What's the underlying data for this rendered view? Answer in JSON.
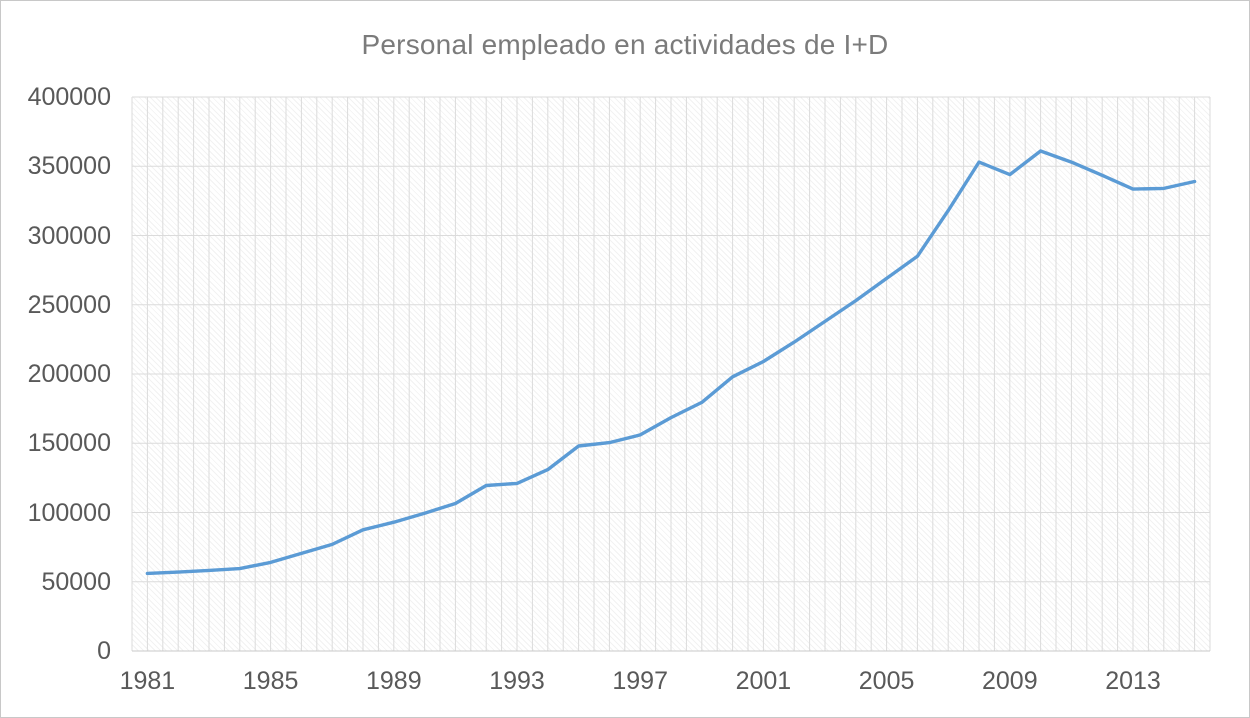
{
  "chart_data": {
    "type": "line",
    "title": "Personal empleado en actividades de I+D",
    "x": [
      1981,
      1982,
      1983,
      1984,
      1985,
      1986,
      1987,
      1988,
      1989,
      1990,
      1991,
      1992,
      1993,
      1994,
      1995,
      1996,
      1997,
      1998,
      1999,
      2000,
      2001,
      2002,
      2003,
      2004,
      2005,
      2006,
      2007,
      2008,
      2009,
      2010,
      2011,
      2012,
      2013,
      2014,
      2015
    ],
    "values": [
      56000,
      57000,
      58200,
      59500,
      64000,
      70500,
      77000,
      87500,
      93000,
      99500,
      106500,
      119500,
      121000,
      131000,
      148000,
      150500,
      156000,
      168500,
      179500,
      198000,
      209000,
      223000,
      238000,
      253000,
      269000,
      285000,
      318000,
      353000,
      344000,
      361000,
      353000,
      343500,
      333500,
      334000,
      339000
    ],
    "ylim": [
      0,
      400000
    ],
    "ytick_step": 50000,
    "ytick_labels": [
      "0",
      "50000",
      "100000",
      "150000",
      "200000",
      "250000",
      "300000",
      "350000",
      "400000"
    ],
    "xtick_labels": [
      "1981",
      "1985",
      "1989",
      "1993",
      "1997",
      "2001",
      "2005",
      "2009",
      "2013"
    ],
    "xtick_interval": 4,
    "legend": "none",
    "grid": {
      "horizontal": true,
      "vertical": true,
      "vertical_divisions": 70
    },
    "plot_background": "hatched",
    "colors": {
      "line": "#5B9BD5",
      "gridline": "#DBDBDB",
      "axis_line": "#C9C9C9",
      "tick_text": "#595959",
      "title_text": "#7B7B7B"
    }
  }
}
